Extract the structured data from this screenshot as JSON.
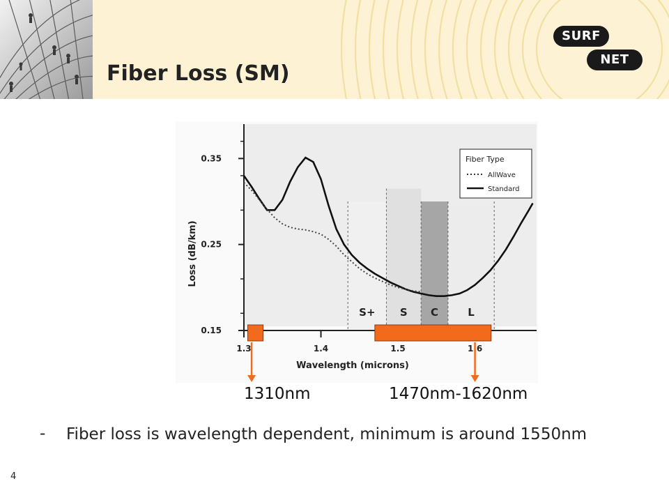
{
  "slide": {
    "title": "Fiber Loss (SM)",
    "page_number": "4",
    "bullet_dash": "-",
    "bullet_text": "Fiber loss is wavelength dependent, minimum is around 1550nm",
    "logo_top": "SURF",
    "logo_bottom": "NET"
  },
  "markers": {
    "label_1310": "1310nm",
    "label_1470_1620": "1470nm-1620nm",
    "color": "#f26b1d",
    "ranges": [
      {
        "name": "1310",
        "from": 1.305,
        "to": 1.325
      },
      {
        "name": "1470-1620",
        "from": 1.47,
        "to": 1.621
      }
    ]
  },
  "chart_data": {
    "type": "line",
    "xlabel": "Wavelength (microns)",
    "ylabel": "Loss (dB/km)",
    "xlim": [
      1.3,
      1.68
    ],
    "ylim": [
      0.15,
      0.39
    ],
    "x_ticks": [
      "1.3",
      "1.4",
      "1.5",
      "1.6"
    ],
    "y_ticks": [
      "0.35",
      "0.25",
      "0.15"
    ],
    "legend": {
      "title": "Fiber Type",
      "position": "top-right",
      "entries": [
        "AllWave",
        "Standard"
      ]
    },
    "bands": [
      {
        "label": "S+",
        "from": 1.435,
        "to": 1.485,
        "fill": "#f0f0f0"
      },
      {
        "label": "S",
        "from": 1.485,
        "to": 1.53,
        "fill": "#e0e0e0"
      },
      {
        "label": "C",
        "from": 1.53,
        "to": 1.565,
        "fill": "#a6a6a6"
      },
      {
        "label": "L",
        "from": 1.565,
        "to": 1.625,
        "fill": "#ececec"
      }
    ],
    "series": [
      {
        "name": "Standard",
        "style": "solid",
        "x": [
          1.3,
          1.31,
          1.32,
          1.33,
          1.34,
          1.35,
          1.36,
          1.37,
          1.38,
          1.39,
          1.4,
          1.41,
          1.42,
          1.43,
          1.44,
          1.45,
          1.46,
          1.47,
          1.48,
          1.49,
          1.5,
          1.51,
          1.52,
          1.53,
          1.54,
          1.55,
          1.56,
          1.57,
          1.58,
          1.59,
          1.6,
          1.61,
          1.62,
          1.63,
          1.64,
          1.65,
          1.66,
          1.67,
          1.675
        ],
        "y": [
          0.33,
          0.317,
          0.303,
          0.29,
          0.29,
          0.302,
          0.323,
          0.34,
          0.351,
          0.346,
          0.326,
          0.295,
          0.268,
          0.25,
          0.238,
          0.229,
          0.222,
          0.216,
          0.211,
          0.206,
          0.202,
          0.198,
          0.195,
          0.193,
          0.191,
          0.19,
          0.19,
          0.191,
          0.193,
          0.197,
          0.203,
          0.211,
          0.22,
          0.231,
          0.244,
          0.259,
          0.275,
          0.29,
          0.298
        ]
      },
      {
        "name": "AllWave",
        "style": "dotted",
        "x": [
          1.3,
          1.31,
          1.32,
          1.33,
          1.34,
          1.35,
          1.36,
          1.37,
          1.38,
          1.39,
          1.4,
          1.41,
          1.42,
          1.43,
          1.44,
          1.45,
          1.46,
          1.47,
          1.48,
          1.49,
          1.5,
          1.51,
          1.52,
          1.53
        ],
        "y": [
          0.322,
          0.313,
          0.302,
          0.291,
          0.281,
          0.274,
          0.27,
          0.268,
          0.267,
          0.265,
          0.262,
          0.256,
          0.248,
          0.238,
          0.23,
          0.222,
          0.216,
          0.211,
          0.207,
          0.203,
          0.2,
          0.198,
          0.196,
          0.195
        ]
      }
    ]
  }
}
